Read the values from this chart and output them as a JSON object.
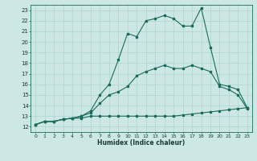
{
  "xlabel": "Humidex (Indice chaleur)",
  "bg_color": "#cde8e4",
  "grid_color": "#aad4cc",
  "line_color": "#1a6b5a",
  "xlim": [
    -0.5,
    23.5
  ],
  "ylim": [
    11.5,
    23.5
  ],
  "xticks": [
    0,
    1,
    2,
    3,
    4,
    5,
    6,
    7,
    8,
    9,
    10,
    11,
    12,
    13,
    14,
    15,
    16,
    17,
    18,
    19,
    20,
    21,
    22,
    23
  ],
  "yticks": [
    12,
    13,
    14,
    15,
    16,
    17,
    18,
    19,
    20,
    21,
    22,
    23
  ],
  "line1_x": [
    0,
    1,
    2,
    3,
    4,
    5,
    6,
    7,
    8,
    9,
    10,
    11,
    12,
    13,
    14,
    15,
    16,
    17,
    18,
    19,
    20,
    21,
    22,
    23
  ],
  "line1_y": [
    12.2,
    12.5,
    12.5,
    12.7,
    12.8,
    12.8,
    13.0,
    13.0,
    13.0,
    13.0,
    13.0,
    13.0,
    13.0,
    13.0,
    13.0,
    13.0,
    13.1,
    13.2,
    13.3,
    13.4,
    13.5,
    13.6,
    13.7,
    13.8
  ],
  "line2_x": [
    0,
    1,
    2,
    3,
    4,
    5,
    6,
    7,
    8,
    9,
    10,
    11,
    12,
    13,
    14,
    15,
    16,
    17,
    18,
    19,
    20,
    21,
    22,
    23
  ],
  "line2_y": [
    12.2,
    12.5,
    12.5,
    12.7,
    12.8,
    13.0,
    13.3,
    14.2,
    15.0,
    15.3,
    15.8,
    16.8,
    17.2,
    17.5,
    17.8,
    17.5,
    17.5,
    17.8,
    17.5,
    17.2,
    15.8,
    15.5,
    15.0,
    13.7
  ],
  "line3_x": [
    0,
    1,
    2,
    3,
    4,
    5,
    6,
    7,
    8,
    9,
    10,
    11,
    12,
    13,
    14,
    15,
    16,
    17,
    18,
    19,
    20,
    21,
    22,
    23
  ],
  "line3_y": [
    12.2,
    12.5,
    12.5,
    12.7,
    12.8,
    13.0,
    13.5,
    15.0,
    16.0,
    18.3,
    20.8,
    20.5,
    22.0,
    22.2,
    22.5,
    22.2,
    21.5,
    21.5,
    23.2,
    19.5,
    16.0,
    15.8,
    15.5,
    13.8
  ]
}
